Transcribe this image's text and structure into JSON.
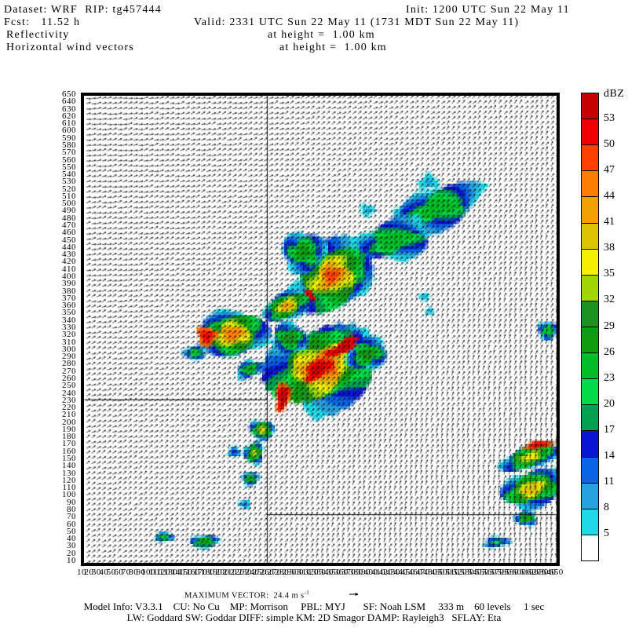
{
  "header": {
    "dataset": "Dataset: WRF  RIP: tg457444",
    "init": "Init: 1200 UTC Sun 22 May 11",
    "fcst": "Fcst:   11.52 h",
    "valid": "Valid: 2331 UTC Sun 22 May 11 (1731 MDT Sun 22 May 11)",
    "field1": "Reflectivity",
    "field1_height": "at height =  1.00 km",
    "field2": "Horizontal wind vectors",
    "field2_height": "at height =  1.00 km"
  },
  "footer": {
    "max_vector_label": "MAXIMUM VECTOR:  ",
    "max_vector_value": "24.4 m s",
    "max_vector_sup": "-1",
    "model_info": "Model Info: V3.3.1    CU: No Cu    MP: Morrison     PBL: MYJ       SF: Noah LSM     333 m    60 levels     1 sec",
    "physics": "LW: Goddard SW: Goddar DIFF: simple KM: 2D Smagor DAMP: Rayleigh3   SFLAY: Eta"
  },
  "axes": {
    "y_labels": [
      650,
      640,
      630,
      620,
      610,
      600,
      590,
      580,
      570,
      560,
      550,
      540,
      530,
      520,
      510,
      500,
      490,
      480,
      470,
      460,
      450,
      440,
      430,
      420,
      410,
      400,
      390,
      380,
      370,
      360,
      350,
      340,
      330,
      320,
      310,
      300,
      290,
      280,
      270,
      260,
      250,
      240,
      230,
      220,
      210,
      200,
      190,
      180,
      170,
      160,
      150,
      140,
      130,
      120,
      110,
      100,
      90,
      80,
      70,
      60,
      50,
      40,
      30,
      20,
      10
    ],
    "x_labels": [
      10,
      20,
      30,
      40,
      50,
      60,
      70,
      80,
      90,
      100,
      110,
      120,
      130,
      140,
      150,
      160,
      170,
      180,
      190,
      200,
      210,
      220,
      230,
      240,
      250,
      260,
      270,
      280,
      290,
      300,
      310,
      320,
      330,
      340,
      350,
      360,
      370,
      380,
      390,
      400,
      410,
      420,
      430,
      440,
      450,
      460,
      470,
      480,
      490,
      500,
      510,
      520,
      530,
      540,
      550,
      560,
      570,
      580,
      590,
      600,
      610,
      620,
      630,
      640,
      650
    ]
  },
  "chart_data": {
    "type": "heatmap",
    "title": "Reflectivity and horizontal wind vectors at height = 1.00 km",
    "units": "dBZ",
    "x_range": [
      10,
      650
    ],
    "y_range": [
      10,
      650
    ],
    "max_vector_ms": 24.4,
    "colorbar": {
      "title": "dBZ",
      "levels": [
        5,
        8,
        11,
        14,
        17,
        20,
        23,
        26,
        29,
        32,
        35,
        38,
        41,
        44,
        47,
        50,
        53
      ],
      "boundary_labels": [
        53,
        50,
        47,
        44,
        41,
        38,
        35,
        32,
        29,
        26,
        23,
        20,
        17,
        14,
        11,
        8,
        5
      ],
      "colors": [
        "#ffffff",
        "#1fd9e8",
        "#28a2dc",
        "#0a64e6",
        "#0a14d2",
        "#00a050",
        "#00dc46",
        "#00be28",
        "#109b10",
        "#1e911e",
        "#a0d700",
        "#f5f000",
        "#dcc400",
        "#f0a000",
        "#ff7d00",
        "#ff4000",
        "#f00000",
        "#c80000"
      ]
    },
    "boundaries": [
      {
        "x1": 0.387,
        "y1": 0.0,
        "x2": 0.387,
        "y2": 1.0
      },
      {
        "x1": 0.0,
        "y1": 0.65,
        "x2": 0.387,
        "y2": 0.65
      },
      {
        "x1": 0.387,
        "y1": 0.896,
        "x2": 1.0,
        "y2": 0.896
      }
    ],
    "wind": {
      "spacing": 6.65,
      "length": 5.6,
      "base_angle": 8,
      "x_gradient": 45,
      "y_gradient": 30,
      "jitter": 26,
      "color": "#000000"
    },
    "storm_cells": [
      {
        "x": 0.75,
        "y": 0.24,
        "rx": 0.088,
        "ry": 0.042,
        "rot": -18,
        "min": 5,
        "max": 23,
        "core": 0.45,
        "seed": 1
      },
      {
        "x": 0.655,
        "y": 0.31,
        "rx": 0.078,
        "ry": 0.038,
        "rot": -12,
        "min": 5,
        "max": 23,
        "core": 0.45,
        "seed": 2
      },
      {
        "x": 0.73,
        "y": 0.185,
        "rx": 0.022,
        "ry": 0.016,
        "rot": 0,
        "min": 5,
        "max": 8,
        "core": 0.4,
        "seed": 3
      },
      {
        "x": 0.6,
        "y": 0.245,
        "rx": 0.016,
        "ry": 0.013,
        "rot": 0,
        "min": 5,
        "max": 8,
        "core": 0.4,
        "seed": 4
      },
      {
        "x": 0.525,
        "y": 0.385,
        "rx": 0.08,
        "ry": 0.065,
        "rot": -35,
        "min": 5,
        "max": 47,
        "core": 0.18,
        "seed": 5
      },
      {
        "x": 0.475,
        "y": 0.43,
        "rx": 0.014,
        "ry": 0.012,
        "rot": 0,
        "min": 50,
        "max": 50,
        "core": 1,
        "seed": 6
      },
      {
        "x": 0.465,
        "y": 0.335,
        "rx": 0.045,
        "ry": 0.04,
        "rot": 0,
        "min": 5,
        "max": 26,
        "core": 0.35,
        "seed": 7
      },
      {
        "x": 0.43,
        "y": 0.45,
        "rx": 0.048,
        "ry": 0.026,
        "rot": -25,
        "min": 5,
        "max": 41,
        "core": 0.25,
        "seed": 8
      },
      {
        "x": 0.315,
        "y": 0.51,
        "rx": 0.065,
        "ry": 0.045,
        "rot": -8,
        "min": 5,
        "max": 44,
        "core": 0.25,
        "seed": 9
      },
      {
        "x": 0.26,
        "y": 0.515,
        "rx": 0.02,
        "ry": 0.022,
        "rot": 0,
        "min": 44,
        "max": 50,
        "core": 0.5,
        "seed": 10
      },
      {
        "x": 0.235,
        "y": 0.55,
        "rx": 0.022,
        "ry": 0.014,
        "rot": 0,
        "min": 5,
        "max": 23,
        "core": 0.35,
        "seed": 11
      },
      {
        "x": 0.35,
        "y": 0.585,
        "rx": 0.028,
        "ry": 0.016,
        "rot": -20,
        "min": 5,
        "max": 26,
        "core": 0.3,
        "seed": 12
      },
      {
        "x": 0.503,
        "y": 0.582,
        "rx": 0.108,
        "ry": 0.078,
        "rot": -22,
        "min": 5,
        "max": 47,
        "core": 0.22,
        "seed": 13
      },
      {
        "x": 0.549,
        "y": 0.538,
        "rx": 0.038,
        "ry": 0.014,
        "rot": -28,
        "min": 50,
        "max": 53,
        "core": 0.5,
        "seed": 14
      },
      {
        "x": 0.495,
        "y": 0.586,
        "rx": 0.032,
        "ry": 0.017,
        "rot": -38,
        "min": 50,
        "max": 53,
        "core": 0.5,
        "seed": 15
      },
      {
        "x": 0.421,
        "y": 0.644,
        "rx": 0.014,
        "ry": 0.032,
        "rot": 8,
        "min": 44,
        "max": 53,
        "core": 0.55,
        "seed": 16
      },
      {
        "x": 0.6,
        "y": 0.553,
        "rx": 0.042,
        "ry": 0.03,
        "rot": -15,
        "min": 5,
        "max": 29,
        "core": 0.3,
        "seed": 17
      },
      {
        "x": 0.435,
        "y": 0.52,
        "rx": 0.036,
        "ry": 0.03,
        "rot": 0,
        "min": 5,
        "max": 29,
        "core": 0.3,
        "seed": 18
      },
      {
        "x": 0.377,
        "y": 0.715,
        "rx": 0.024,
        "ry": 0.019,
        "rot": 0,
        "min": 5,
        "max": 38,
        "core": 0.2,
        "seed": 19
      },
      {
        "x": 0.36,
        "y": 0.765,
        "rx": 0.018,
        "ry": 0.023,
        "rot": 10,
        "min": 5,
        "max": 35,
        "core": 0.2,
        "seed": 20
      },
      {
        "x": 0.318,
        "y": 0.763,
        "rx": 0.013,
        "ry": 0.012,
        "rot": 0,
        "min": 5,
        "max": 14,
        "core": 0.35,
        "seed": 21
      },
      {
        "x": 0.352,
        "y": 0.82,
        "rx": 0.017,
        "ry": 0.013,
        "rot": 0,
        "min": 5,
        "max": 26,
        "core": 0.3,
        "seed": 22
      },
      {
        "x": 0.34,
        "y": 0.875,
        "rx": 0.013,
        "ry": 0.01,
        "rot": 0,
        "min": 5,
        "max": 11,
        "core": 0.4,
        "seed": 23
      },
      {
        "x": 0.17,
        "y": 0.945,
        "rx": 0.02,
        "ry": 0.009,
        "rot": -5,
        "min": 5,
        "max": 23,
        "core": 0.35,
        "seed": 24
      },
      {
        "x": 0.255,
        "y": 0.955,
        "rx": 0.028,
        "ry": 0.013,
        "rot": -5,
        "min": 5,
        "max": 29,
        "core": 0.3,
        "seed": 25
      },
      {
        "x": 0.945,
        "y": 0.773,
        "rx": 0.058,
        "ry": 0.023,
        "rot": -18,
        "min": 5,
        "max": 35,
        "core": 0.3,
        "seed": 26
      },
      {
        "x": 0.963,
        "y": 0.747,
        "rx": 0.032,
        "ry": 0.007,
        "rot": -6,
        "min": 44,
        "max": 53,
        "core": 0.5,
        "seed": 27
      },
      {
        "x": 0.948,
        "y": 0.842,
        "rx": 0.062,
        "ry": 0.034,
        "rot": -18,
        "min": 5,
        "max": 38,
        "core": 0.3,
        "seed": 28
      },
      {
        "x": 0.935,
        "y": 0.905,
        "rx": 0.022,
        "ry": 0.014,
        "rot": 0,
        "min": 5,
        "max": 29,
        "core": 0.3,
        "seed": 29
      },
      {
        "x": 0.873,
        "y": 0.956,
        "rx": 0.027,
        "ry": 0.011,
        "rot": -8,
        "min": 5,
        "max": 20,
        "core": 0.35,
        "seed": 30
      },
      {
        "x": 0.982,
        "y": 0.503,
        "rx": 0.02,
        "ry": 0.019,
        "rot": 0,
        "min": 5,
        "max": 23,
        "core": 0.35,
        "seed": 31
      },
      {
        "x": 0.72,
        "y": 0.43,
        "rx": 0.012,
        "ry": 0.009,
        "rot": 0,
        "min": 5,
        "max": 8,
        "core": 0.4,
        "seed": 32
      },
      {
        "x": 0.732,
        "y": 0.462,
        "rx": 0.01,
        "ry": 0.008,
        "rot": 0,
        "min": 5,
        "max": 8,
        "core": 0.4,
        "seed": 33
      }
    ]
  }
}
